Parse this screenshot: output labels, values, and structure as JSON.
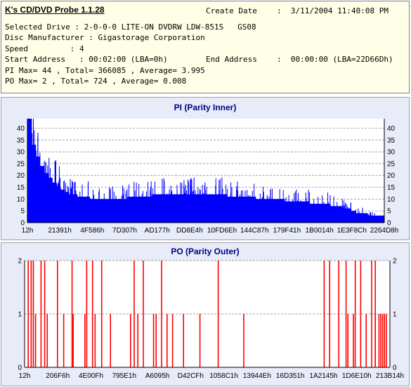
{
  "app_title": "K's CD/DVD Probe 1.1.28",
  "info": {
    "create_date_label": "Create Date",
    "create_date_value": ":  3/11/2004 11:40:08 PM",
    "line_drive": "Selected Drive : 2-0-0-0 LITE-ON DVDRW LDW-851S   GS08",
    "line_manufacturer": "Disc Manufacturer : Gigastorage Corporation",
    "line_speed": "Speed         : 4",
    "line_start": "Start Address   : 00:02:00 (LBA=0h)",
    "end_address_label": "End Address",
    "end_address_value": ":  00:00:00 (LBA=22D66Dh)",
    "line_pi": "PI Max= 44 , Total= 366085 , Average= 3.995",
    "line_po": "PO Max= 2 , Total= 724 , Average= 0.008"
  },
  "chart_data": [
    {
      "type": "bar",
      "title": "PI (Parity Inner)",
      "color": "#0000ff",
      "ylim": [
        0,
        44
      ],
      "yticks": [
        0,
        5,
        10,
        15,
        20,
        25,
        30,
        35,
        40
      ],
      "xtick_labels": [
        "12h",
        "21391h",
        "4F586h",
        "7D307h",
        "AD177h",
        "DD8E4h",
        "10FD6Eh",
        "144C87h",
        "179F41h",
        "1B0014h",
        "1E3F8Ch",
        "2264D8h"
      ],
      "series": [
        {
          "values": [
            44,
            33,
            28,
            24,
            21,
            19,
            17,
            15,
            14,
            13,
            12,
            12,
            11,
            11,
            11,
            10,
            10,
            10,
            10,
            10,
            10,
            10,
            10,
            10,
            11,
            11,
            11,
            11,
            11,
            11,
            12,
            12,
            12,
            12,
            12,
            12,
            12,
            12,
            12,
            12,
            12,
            12,
            12,
            12,
            12,
            12,
            12,
            12,
            11,
            11,
            11,
            11,
            11,
            11,
            11,
            10,
            10,
            10,
            10,
            10,
            10,
            10,
            9,
            9,
            9,
            9,
            9,
            9,
            8,
            8,
            8,
            8,
            8,
            7,
            7,
            7,
            6,
            6,
            5,
            4,
            4,
            4,
            3,
            3,
            3,
            3
          ]
        }
      ],
      "grid": true
    },
    {
      "type": "bar",
      "title": "PO (Parity Outer)",
      "color": "#ff0000",
      "ylim": [
        0,
        2
      ],
      "yticks": [
        0,
        1,
        2
      ],
      "xtick_labels": [
        "12h",
        "206F6h",
        "4E00Fh",
        "795E1h",
        "A6095h",
        "D42CFh",
        "1058C1h",
        "13944Eh",
        "16D351h",
        "1A2145h",
        "1D6E10h",
        "213B14h"
      ],
      "series": [
        {
          "values": [
            2,
            2,
            2,
            1,
            2,
            2,
            1,
            2,
            1,
            2,
            1,
            1,
            2,
            2,
            1,
            2,
            1,
            1,
            2,
            1,
            2,
            1,
            1,
            2,
            1,
            1,
            1,
            1,
            2,
            1,
            2,
            2,
            2,
            2,
            1,
            1,
            2,
            1,
            2,
            1,
            1,
            1,
            1,
            1,
            2,
            2,
            1
          ]
        },
        {
          "positions": [
            0.01,
            0.018,
            0.024,
            0.03,
            0.045,
            0.055,
            0.062,
            0.09,
            0.107,
            0.13,
            0.133,
            0.165,
            0.17,
            0.186,
            0.193,
            0.211,
            0.235,
            0.29,
            0.3,
            0.31,
            0.325,
            0.353,
            0.36,
            0.375,
            0.39,
            0.405,
            0.435,
            0.48,
            0.53,
            0.6,
            0.82,
            0.835,
            0.86,
            0.88,
            0.885,
            0.9,
            0.905,
            0.935,
            0.96,
            0.98,
            0.96,
            0.97,
            0.975,
            0.985,
            0.92,
            0.95,
            0.99
          ]
        }
      ],
      "grid": true
    }
  ]
}
